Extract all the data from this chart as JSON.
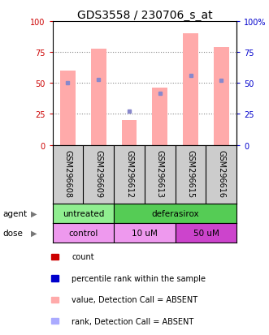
{
  "title": "GDS3558 / 230706_s_at",
  "samples": [
    "GSM296608",
    "GSM296609",
    "GSM296612",
    "GSM296613",
    "GSM296615",
    "GSM296616"
  ],
  "pink_bars": [
    60,
    78,
    20,
    46,
    90,
    79
  ],
  "blue_markers": [
    50,
    53,
    27,
    42,
    56,
    52
  ],
  "ylim": [
    0,
    100
  ],
  "yticks": [
    0,
    25,
    50,
    75,
    100
  ],
  "bar_color": "#ffaaaa",
  "marker_color": "#8888cc",
  "bar_width": 0.5,
  "title_fontsize": 10,
  "tick_fontsize": 7,
  "grid_color": "#888888",
  "left_axis_color": "#cc0000",
  "right_axis_color": "#0000cc",
  "agent_color_untreated": "#90ee90",
  "agent_color_deferasirox": "#55cc55",
  "dose_color_control": "#ee99ee",
  "dose_color_10uM": "#ee99ee",
  "dose_color_50uM": "#cc44cc",
  "sample_bg": "#cccccc",
  "legend_colors": [
    "#cc0000",
    "#0000cc",
    "#ffaaaa",
    "#aaaaff"
  ],
  "legend_labels": [
    "count",
    "percentile rank within the sample",
    "value, Detection Call = ABSENT",
    "rank, Detection Call = ABSENT"
  ]
}
